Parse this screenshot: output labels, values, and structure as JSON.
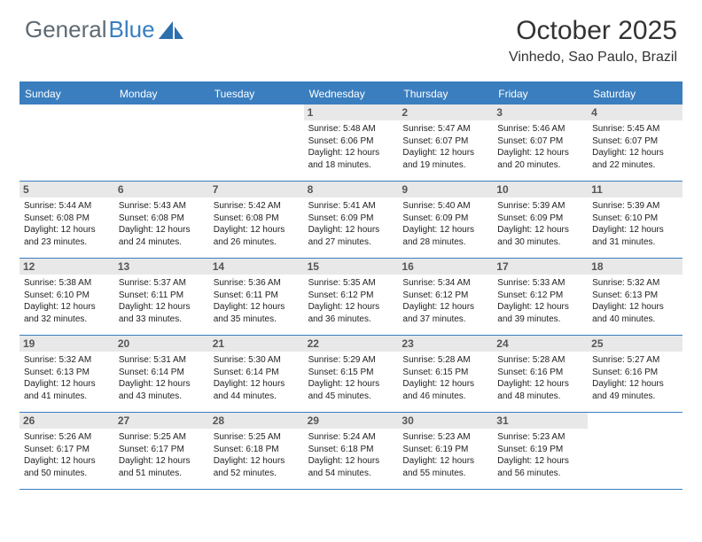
{
  "logo": {
    "part1": "General",
    "part2": "Blue"
  },
  "month_title": "October 2025",
  "location": "Vinhedo, Sao Paulo, Brazil",
  "colors": {
    "brand": "#3a7ebf",
    "text": "#333333",
    "daynum_bg": "#e8e8e8",
    "background": "#ffffff"
  },
  "weekdays": [
    "Sunday",
    "Monday",
    "Tuesday",
    "Wednesday",
    "Thursday",
    "Friday",
    "Saturday"
  ],
  "weeks": [
    [
      null,
      null,
      null,
      {
        "n": "1",
        "sr": "5:48 AM",
        "ss": "6:06 PM",
        "dl": "12 hours and 18 minutes."
      },
      {
        "n": "2",
        "sr": "5:47 AM",
        "ss": "6:07 PM",
        "dl": "12 hours and 19 minutes."
      },
      {
        "n": "3",
        "sr": "5:46 AM",
        "ss": "6:07 PM",
        "dl": "12 hours and 20 minutes."
      },
      {
        "n": "4",
        "sr": "5:45 AM",
        "ss": "6:07 PM",
        "dl": "12 hours and 22 minutes."
      }
    ],
    [
      {
        "n": "5",
        "sr": "5:44 AM",
        "ss": "6:08 PM",
        "dl": "12 hours and 23 minutes."
      },
      {
        "n": "6",
        "sr": "5:43 AM",
        "ss": "6:08 PM",
        "dl": "12 hours and 24 minutes."
      },
      {
        "n": "7",
        "sr": "5:42 AM",
        "ss": "6:08 PM",
        "dl": "12 hours and 26 minutes."
      },
      {
        "n": "8",
        "sr": "5:41 AM",
        "ss": "6:09 PM",
        "dl": "12 hours and 27 minutes."
      },
      {
        "n": "9",
        "sr": "5:40 AM",
        "ss": "6:09 PM",
        "dl": "12 hours and 28 minutes."
      },
      {
        "n": "10",
        "sr": "5:39 AM",
        "ss": "6:09 PM",
        "dl": "12 hours and 30 minutes."
      },
      {
        "n": "11",
        "sr": "5:39 AM",
        "ss": "6:10 PM",
        "dl": "12 hours and 31 minutes."
      }
    ],
    [
      {
        "n": "12",
        "sr": "5:38 AM",
        "ss": "6:10 PM",
        "dl": "12 hours and 32 minutes."
      },
      {
        "n": "13",
        "sr": "5:37 AM",
        "ss": "6:11 PM",
        "dl": "12 hours and 33 minutes."
      },
      {
        "n": "14",
        "sr": "5:36 AM",
        "ss": "6:11 PM",
        "dl": "12 hours and 35 minutes."
      },
      {
        "n": "15",
        "sr": "5:35 AM",
        "ss": "6:12 PM",
        "dl": "12 hours and 36 minutes."
      },
      {
        "n": "16",
        "sr": "5:34 AM",
        "ss": "6:12 PM",
        "dl": "12 hours and 37 minutes."
      },
      {
        "n": "17",
        "sr": "5:33 AM",
        "ss": "6:12 PM",
        "dl": "12 hours and 39 minutes."
      },
      {
        "n": "18",
        "sr": "5:32 AM",
        "ss": "6:13 PM",
        "dl": "12 hours and 40 minutes."
      }
    ],
    [
      {
        "n": "19",
        "sr": "5:32 AM",
        "ss": "6:13 PM",
        "dl": "12 hours and 41 minutes."
      },
      {
        "n": "20",
        "sr": "5:31 AM",
        "ss": "6:14 PM",
        "dl": "12 hours and 43 minutes."
      },
      {
        "n": "21",
        "sr": "5:30 AM",
        "ss": "6:14 PM",
        "dl": "12 hours and 44 minutes."
      },
      {
        "n": "22",
        "sr": "5:29 AM",
        "ss": "6:15 PM",
        "dl": "12 hours and 45 minutes."
      },
      {
        "n": "23",
        "sr": "5:28 AM",
        "ss": "6:15 PM",
        "dl": "12 hours and 46 minutes."
      },
      {
        "n": "24",
        "sr": "5:28 AM",
        "ss": "6:16 PM",
        "dl": "12 hours and 48 minutes."
      },
      {
        "n": "25",
        "sr": "5:27 AM",
        "ss": "6:16 PM",
        "dl": "12 hours and 49 minutes."
      }
    ],
    [
      {
        "n": "26",
        "sr": "5:26 AM",
        "ss": "6:17 PM",
        "dl": "12 hours and 50 minutes."
      },
      {
        "n": "27",
        "sr": "5:25 AM",
        "ss": "6:17 PM",
        "dl": "12 hours and 51 minutes."
      },
      {
        "n": "28",
        "sr": "5:25 AM",
        "ss": "6:18 PM",
        "dl": "12 hours and 52 minutes."
      },
      {
        "n": "29",
        "sr": "5:24 AM",
        "ss": "6:18 PM",
        "dl": "12 hours and 54 minutes."
      },
      {
        "n": "30",
        "sr": "5:23 AM",
        "ss": "6:19 PM",
        "dl": "12 hours and 55 minutes."
      },
      {
        "n": "31",
        "sr": "5:23 AM",
        "ss": "6:19 PM",
        "dl": "12 hours and 56 minutes."
      },
      null
    ]
  ],
  "labels": {
    "sunrise": "Sunrise:",
    "sunset": "Sunset:",
    "daylight": "Daylight:"
  }
}
